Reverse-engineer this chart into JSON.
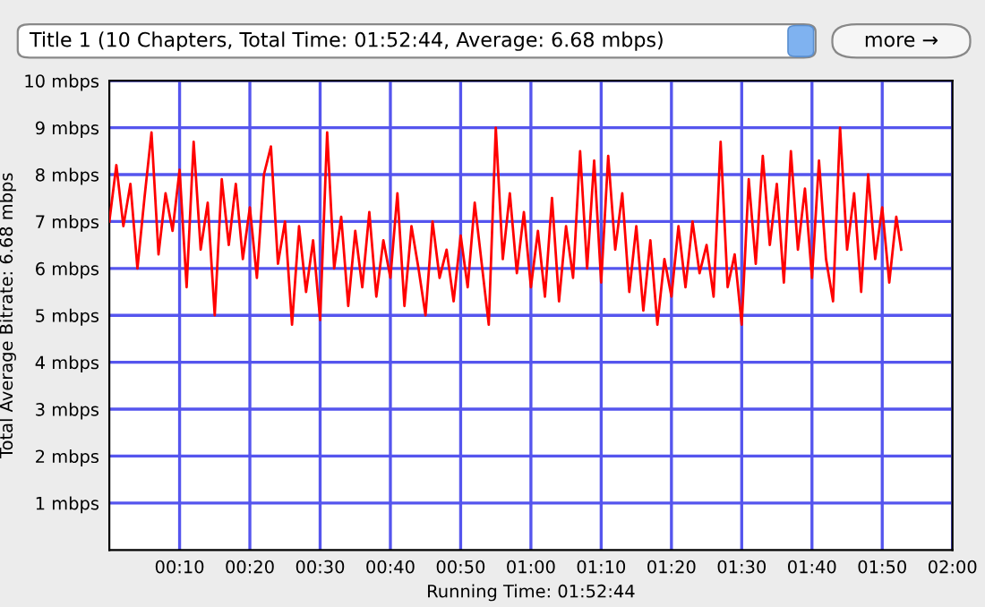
{
  "chart_data": {
    "type": "line",
    "title": "Title 1 (10 Chapters, Total Time: 01:52:44, Average: 6.68 mbps)",
    "annotations": [
      "more →"
    ],
    "xlabel": "Running Time: 01:52:44",
    "ylabel": "Total Average Bitrate: 6.68 mbps",
    "x": [
      0,
      1,
      2,
      3,
      4,
      5,
      6,
      7,
      8,
      9,
      10,
      11,
      12,
      13,
      14,
      15,
      16,
      17,
      18,
      19,
      20,
      21,
      22,
      23,
      24,
      25,
      26,
      27,
      28,
      29,
      30,
      31,
      32,
      33,
      34,
      35,
      36,
      37,
      38,
      39,
      40,
      41,
      42,
      43,
      44,
      45,
      46,
      47,
      48,
      49,
      50,
      51,
      52,
      53,
      54,
      55,
      56,
      57,
      58,
      59,
      60,
      61,
      62,
      63,
      64,
      65,
      66,
      67,
      68,
      69,
      70,
      71,
      72,
      73,
      74,
      75,
      76,
      77,
      78,
      79,
      80,
      81,
      82,
      83,
      84,
      85,
      86,
      87,
      88,
      89,
      90,
      91,
      92,
      93,
      94,
      95,
      96,
      97,
      98,
      99,
      100,
      101,
      102,
      103,
      104,
      105,
      106,
      107,
      108,
      109,
      110,
      111,
      112,
      112.7
    ],
    "series": [
      {
        "color": "#ff0000",
        "values": [
          7.0,
          8.2,
          6.9,
          7.8,
          6.0,
          7.5,
          8.9,
          6.3,
          7.6,
          6.8,
          8.1,
          5.6,
          8.7,
          6.4,
          7.4,
          5.0,
          7.9,
          6.5,
          7.8,
          6.2,
          7.3,
          5.8,
          8.0,
          8.6,
          6.1,
          7.0,
          4.8,
          6.9,
          5.5,
          6.6,
          4.9,
          8.9,
          6.0,
          7.1,
          5.2,
          6.8,
          5.6,
          7.2,
          5.4,
          6.6,
          5.8,
          7.6,
          5.2,
          6.9,
          6.0,
          5.0,
          7.0,
          5.8,
          6.4,
          5.3,
          6.7,
          5.6,
          7.4,
          6.1,
          4.8,
          9.0,
          6.2,
          7.6,
          5.9,
          7.2,
          5.6,
          6.8,
          5.4,
          7.5,
          5.3,
          6.9,
          5.8,
          8.5,
          6.0,
          8.3,
          5.7,
          8.4,
          6.4,
          7.6,
          5.5,
          6.9,
          5.1,
          6.6,
          4.8,
          6.2,
          5.4,
          6.9,
          5.6,
          7.0,
          5.9,
          6.5,
          5.4,
          8.7,
          5.6,
          6.3,
          4.8,
          7.9,
          6.1,
          8.4,
          6.5,
          7.8,
          5.7,
          8.5,
          6.4,
          7.7,
          5.8,
          8.3,
          6.2,
          5.3,
          9.0,
          6.4,
          7.6,
          5.5,
          8.0,
          6.2,
          7.3,
          5.7,
          7.1,
          6.4
        ]
      }
    ],
    "xlim": [
      0,
      120
    ],
    "xticks": [
      {
        "value": 10,
        "label": "00:10"
      },
      {
        "value": 20,
        "label": "00:20"
      },
      {
        "value": 30,
        "label": "00:30"
      },
      {
        "value": 40,
        "label": "00:40"
      },
      {
        "value": 50,
        "label": "00:50"
      },
      {
        "value": 60,
        "label": "01:00"
      },
      {
        "value": 70,
        "label": "01:10"
      },
      {
        "value": 80,
        "label": "01:20"
      },
      {
        "value": 90,
        "label": "01:30"
      },
      {
        "value": 100,
        "label": "01:40"
      },
      {
        "value": 110,
        "label": "01:50"
      },
      {
        "value": 120,
        "label": "02:00"
      }
    ],
    "ylim": [
      0,
      10
    ],
    "yticks": [
      {
        "value": 1,
        "label": "1 mbps"
      },
      {
        "value": 2,
        "label": "2 mbps"
      },
      {
        "value": 3,
        "label": "3 mbps"
      },
      {
        "value": 4,
        "label": "4 mbps"
      },
      {
        "value": 5,
        "label": "5 mbps"
      },
      {
        "value": 6,
        "label": "6 mbps"
      },
      {
        "value": 7,
        "label": "7 mbps"
      },
      {
        "value": 8,
        "label": "8 mbps"
      },
      {
        "value": 9,
        "label": "9 mbps"
      },
      {
        "value": 10,
        "label": "10 mbps"
      }
    ],
    "grid": true,
    "line_style": "solid"
  }
}
